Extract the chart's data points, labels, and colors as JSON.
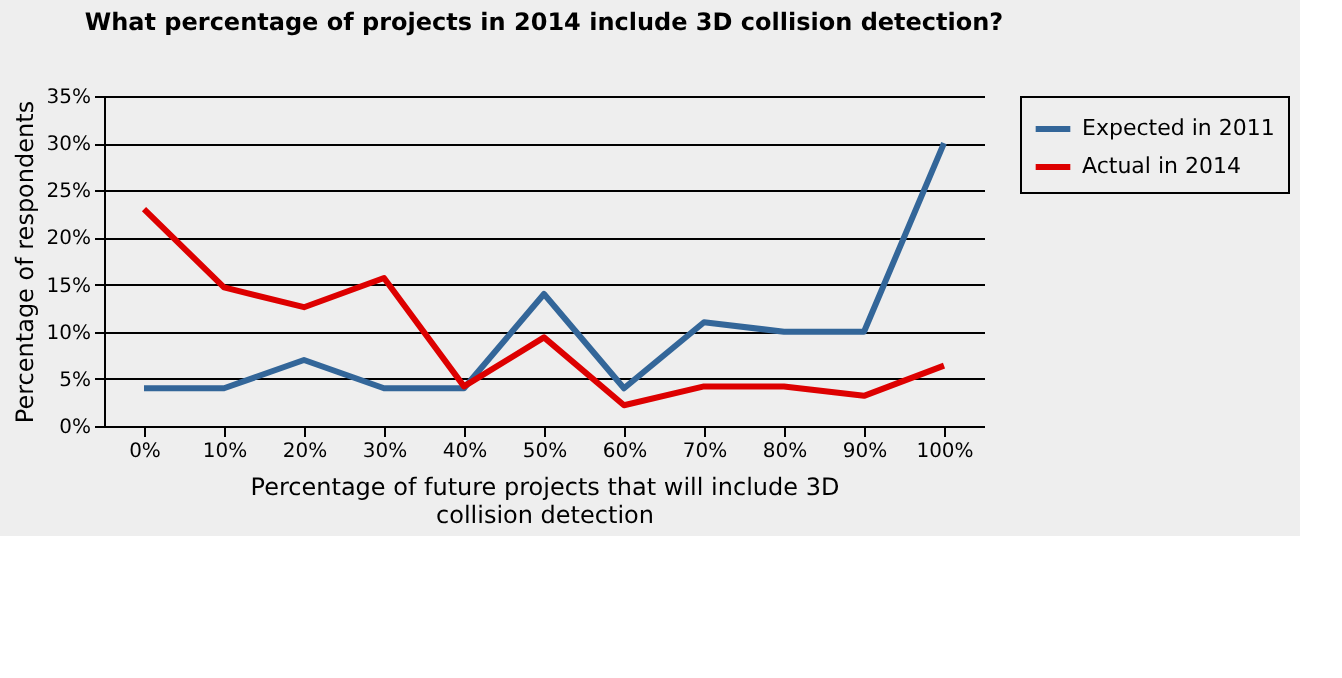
{
  "chart_data": {
    "type": "line",
    "title": "What percentage of projects in 2014 include 3D collision detection?",
    "xlabel": "Percentage of future projects that will include 3D collision detection",
    "ylabel": "Percentage of respondents",
    "categories": [
      "0%",
      "10%",
      "20%",
      "30%",
      "40%",
      "50%",
      "60%",
      "70%",
      "80%",
      "90%",
      "100%"
    ],
    "series": [
      {
        "name": "Expected in 2011",
        "color": "#336699",
        "values": [
          4,
          4,
          7,
          4,
          4,
          14,
          4,
          11,
          10,
          10,
          30
        ]
      },
      {
        "name": "Actual in 2014",
        "color": "#dd0000",
        "values": [
          23,
          14.7,
          12.6,
          15.7,
          4.2,
          9.4,
          2.2,
          4.2,
          4.2,
          3.2,
          6.4
        ]
      }
    ],
    "ylim": [
      0,
      35
    ],
    "yticks": [
      {
        "value": 0,
        "label": "0%"
      },
      {
        "value": 5,
        "label": "5%"
      },
      {
        "value": 10,
        "label": "10%"
      },
      {
        "value": 15,
        "label": "15%"
      },
      {
        "value": 20,
        "label": "20%"
      },
      {
        "value": 25,
        "label": "25%"
      },
      {
        "value": 30,
        "label": "30%"
      },
      {
        "value": 35,
        "label": "35%"
      }
    ],
    "grid": "y",
    "legend": "right",
    "marker": "none",
    "line_style": "solid"
  }
}
